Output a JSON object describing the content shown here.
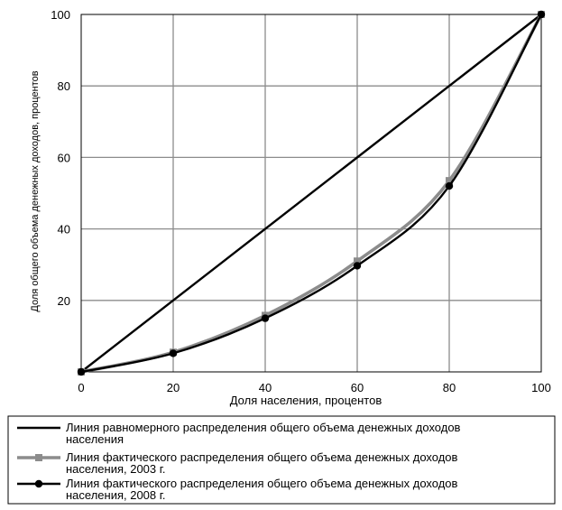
{
  "chart_data": {
    "type": "line",
    "xlabel": "Доля населения, процентов",
    "ylabel": "Доля общего объема денежных доходов, процентов",
    "xlim": [
      0,
      100
    ],
    "ylim": [
      0,
      100
    ],
    "x_ticks": [
      "0",
      "20",
      "40",
      "60",
      "80",
      "100"
    ],
    "y_ticks": [
      "20",
      "40",
      "60",
      "80",
      "100"
    ],
    "grid": true,
    "legend_position": "bottom",
    "series": [
      {
        "name": "Линия равномерного распределения общего объема денежных доходов населения",
        "legend_lines": [
          "Линия равномерного распределения общего объема денежных доходов",
          "населения"
        ],
        "color": "#000000",
        "marker": "none",
        "x": [
          0,
          100
        ],
        "y": [
          0,
          100
        ]
      },
      {
        "name": "Линия фактического распределения общего объема денежных доходов населения, 2003 г.",
        "legend_lines": [
          "Линия фактического распределения общего объема денежных доходов",
          "населения, 2003 г."
        ],
        "color": "#8c8c8c",
        "marker": "square",
        "x": [
          0,
          20,
          40,
          60,
          80,
          100
        ],
        "y": [
          0,
          5.5,
          15.8,
          31,
          53.5,
          100
        ]
      },
      {
        "name": "Линия фактического распределения общего объема денежных доходов населения, 2008 г.",
        "legend_lines": [
          "Линия фактического распределения общего объема денежных доходов",
          "населения, 2008 г."
        ],
        "color": "#000000",
        "marker": "circle",
        "x": [
          0,
          20,
          40,
          60,
          80,
          100
        ],
        "y": [
          0,
          5.2,
          15,
          29.7,
          52,
          100
        ]
      }
    ]
  }
}
